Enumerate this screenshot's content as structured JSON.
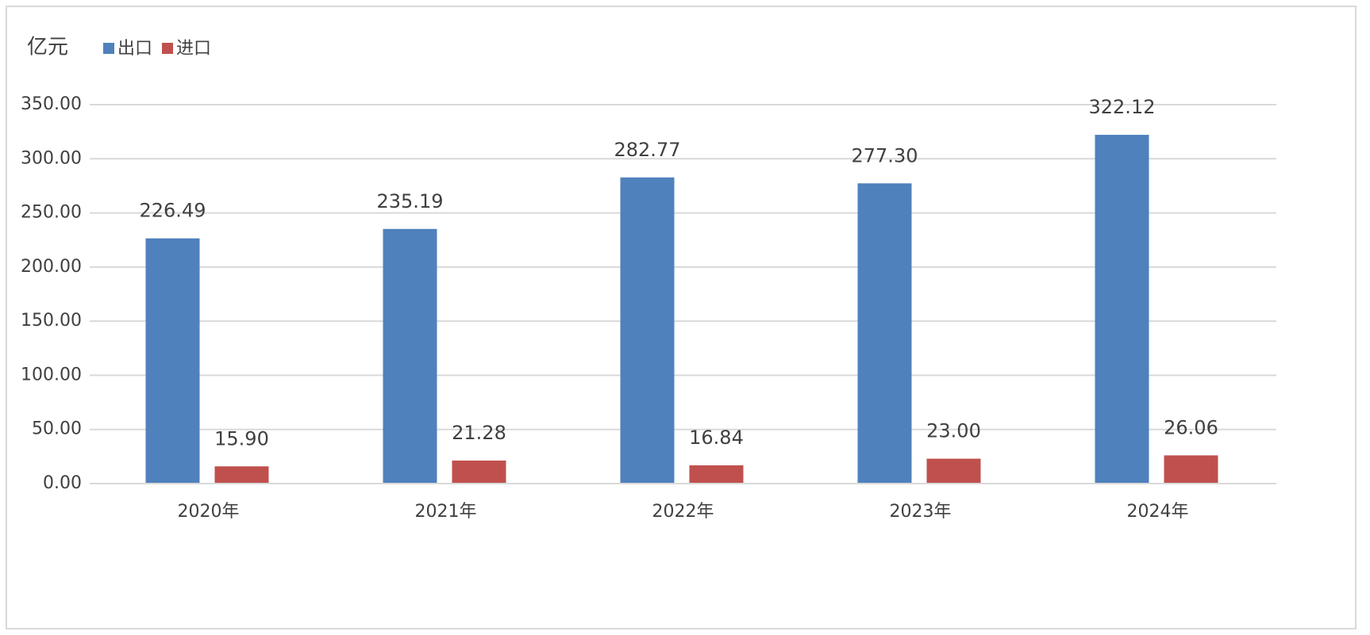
{
  "chart_data": {
    "type": "bar",
    "y_label": "亿元",
    "categories": [
      "2020年",
      "2021年",
      "2022年",
      "2023年",
      "2024年"
    ],
    "series": [
      {
        "name": "出口",
        "color": "#4f81bd",
        "values": [
          226.49,
          235.19,
          282.77,
          277.3,
          322.12
        ],
        "value_labels": [
          "226.49",
          "235.19",
          "282.77",
          "277.30",
          "322.12"
        ]
      },
      {
        "name": "进口",
        "color": "#c0504d",
        "values": [
          15.9,
          21.28,
          16.84,
          23.0,
          26.06
        ],
        "value_labels": [
          "15.90",
          "21.28",
          "16.84",
          "23.00",
          "26.06"
        ]
      }
    ],
    "ylim": [
      0,
      350
    ],
    "yticks": [
      {
        "value": 0,
        "label": "0.00"
      },
      {
        "value": 50,
        "label": "50.00"
      },
      {
        "value": 100,
        "label": "100.00"
      },
      {
        "value": 150,
        "label": "150.00"
      },
      {
        "value": 200,
        "label": "200.00"
      },
      {
        "value": 250,
        "label": "250.00"
      },
      {
        "value": 300,
        "label": "300.00"
      },
      {
        "value": 350,
        "label": "350.00"
      }
    ],
    "grid": true
  }
}
